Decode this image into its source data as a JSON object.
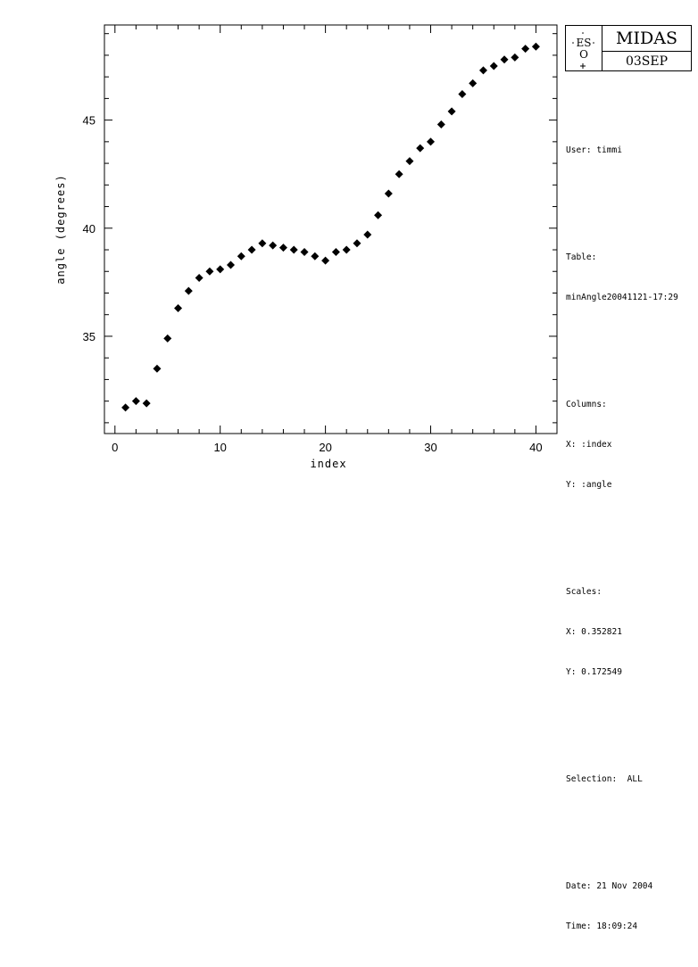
{
  "logo": {
    "eso_text": "ES",
    "eso_sub": "O",
    "app_name": "MIDAS",
    "subtitle": "03SEP"
  },
  "info": {
    "user": "User: timmi",
    "table_label": "Table:",
    "table_name": "minAngle20041121-17:29",
    "columns_label": "Columns:",
    "column_x": "X: :index",
    "column_y": "Y: :angle",
    "scales_label": "Scales:",
    "scale_x": "X: 0.352821",
    "scale_y": "Y: 0.172549",
    "selection": "Selection:  ALL",
    "date": "Date: 21 Nov 2004",
    "time": "Time: 18:09:24"
  },
  "chart_data": {
    "type": "scatter",
    "xlabel": "index",
    "ylabel": "angle (degrees)",
    "xlim": [
      -1,
      42
    ],
    "ylim": [
      30.5,
      49.4
    ],
    "xticks": [
      0,
      10,
      20,
      30,
      40
    ],
    "yticks": [
      35,
      40,
      45
    ],
    "marker": "diamond",
    "marker_color": "#000000",
    "grid": false,
    "x": [
      1,
      2,
      3,
      4,
      5,
      6,
      7,
      8,
      9,
      10,
      11,
      12,
      13,
      14,
      15,
      16,
      17,
      18,
      19,
      20,
      21,
      22,
      23,
      24,
      25,
      26,
      27,
      28,
      29,
      30,
      31,
      32,
      33,
      34,
      35,
      36,
      37,
      38,
      39,
      40
    ],
    "y": [
      31.7,
      32.0,
      31.9,
      33.5,
      34.9,
      36.3,
      37.1,
      37.7,
      38.0,
      38.1,
      38.3,
      38.7,
      39.0,
      39.3,
      39.2,
      39.1,
      39.0,
      38.9,
      38.7,
      38.5,
      38.9,
      39.0,
      39.3,
      39.7,
      40.6,
      41.6,
      42.5,
      43.1,
      43.7,
      44.0,
      44.8,
      45.4,
      46.2,
      46.7,
      47.3,
      47.5,
      47.8,
      47.9,
      48.3,
      48.4
    ]
  }
}
